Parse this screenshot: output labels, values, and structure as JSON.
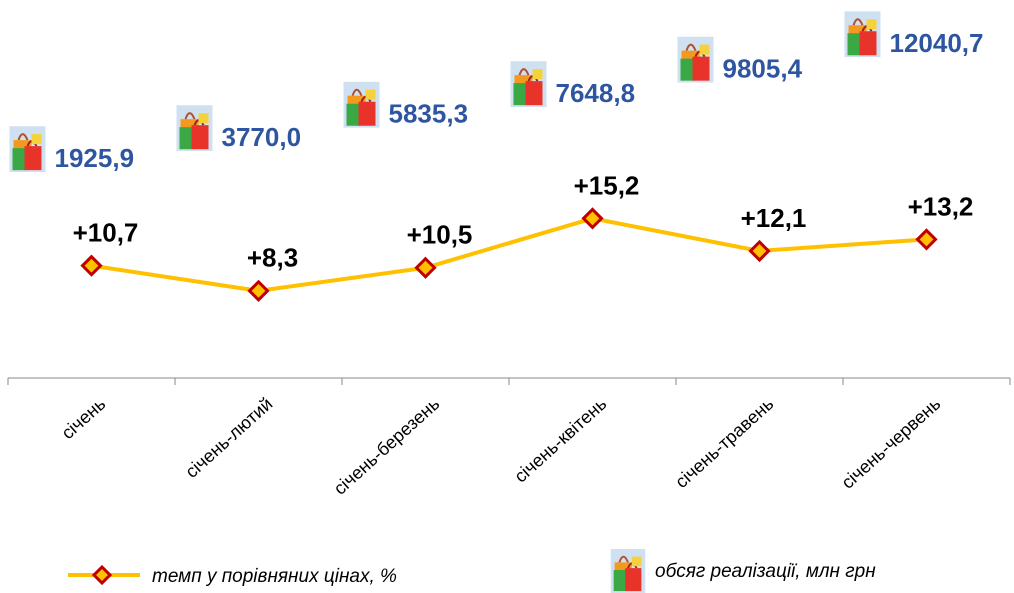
{
  "chart_data": {
    "type": "line",
    "categories": [
      "січень",
      "січень-лютий",
      "січень-березень",
      "січень-квітень",
      "січень-травень",
      "січень-червень"
    ],
    "series": [
      {
        "name": "темп у порівняних цінах, %",
        "color": "#ffc000",
        "marker_edge_color": "#c00000",
        "values": [
          10.7,
          8.3,
          10.5,
          15.2,
          12.1,
          13.2
        ],
        "value_labels": [
          "+10,7",
          "+8,3",
          "+10,5",
          "+15,2",
          "+12,1",
          "+13,2"
        ]
      },
      {
        "name": "обсяг реалізації, млн грн",
        "color": "#2e55a0",
        "axis": "y2",
        "values": [
          1925.9,
          3770.0,
          5835.3,
          7648.8,
          9805.4,
          12040.7
        ],
        "value_labels": [
          "1925,9",
          "3770,0",
          "5835,3",
          "7648,8",
          "9805,4",
          "12040,7"
        ]
      }
    ],
    "ylim": [
      0,
      36
    ],
    "y2lim": [
      0,
      14000
    ],
    "grid": false
  }
}
